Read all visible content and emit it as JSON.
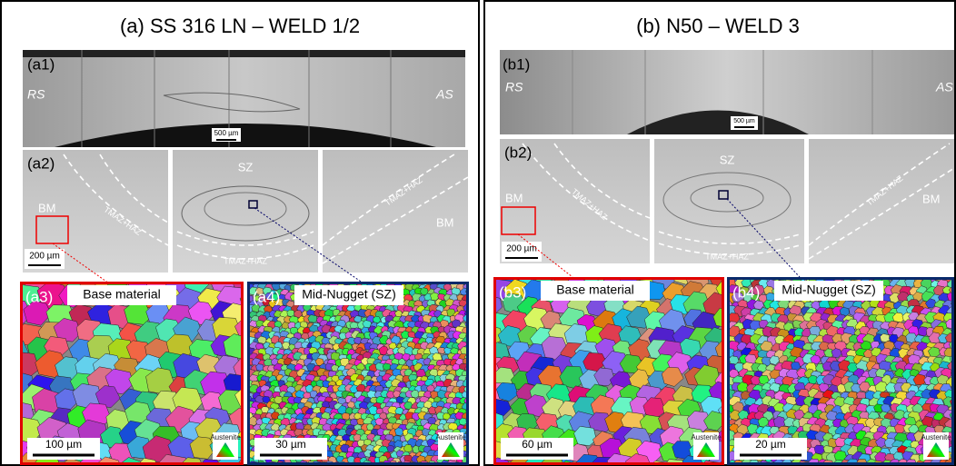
{
  "panels": {
    "a": {
      "title": "(a)  SS 316 LN – WELD 1/2",
      "a1": {
        "label": "(a1)",
        "left": "RS",
        "right": "AS",
        "scale": "500 µm"
      },
      "a2": {
        "label": "(a2)",
        "sz": "SZ",
        "bm_left": "BM",
        "bm_right": "BM",
        "tmaz_left": "TMAZ+HAZ",
        "tmaz_bottom": "TMAZ+HAZ",
        "tmaz_right": "TMAZ+HAZ",
        "scale": "200 µm"
      },
      "a3": {
        "label": "(a3)",
        "caption": "Base material",
        "scale": "100 µm",
        "legend": "Austenite"
      },
      "a4": {
        "label": "(a4)",
        "caption": "Mid-Nugget (SZ)",
        "scale": "30 µm",
        "legend": "Austenite"
      }
    },
    "b": {
      "title": "(b)  N50 – WELD 3",
      "b1": {
        "label": "(b1)",
        "left": "RS",
        "right": "AS",
        "scale": "500 µm"
      },
      "b2": {
        "label": "(b2)",
        "sz": "SZ",
        "bm_left": "BM",
        "bm_right": "BM",
        "tmaz_left": "TMAZ+HAZ",
        "tmaz_bottom": "TMAZ+HAZ",
        "tmaz_right": "TMAZ+HAZ",
        "scale": "200 µm"
      },
      "b3": {
        "label": "(b3)",
        "caption": "Base material",
        "scale": "60 µm",
        "legend": "Austenite"
      },
      "b4": {
        "label": "(b4)",
        "caption": "Mid-Nugget (SZ)",
        "scale": "20 µm",
        "legend": "Austenite"
      }
    }
  }
}
